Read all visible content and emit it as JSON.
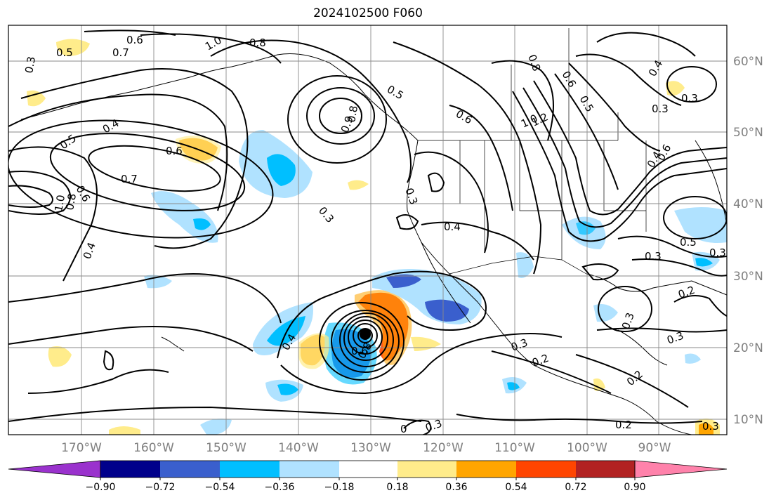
{
  "title": "2024102500 F060",
  "longitude_labels": [
    "170°W",
    "160°W",
    "150°W",
    "140°W",
    "130°W",
    "120°W",
    "110°W",
    "100°W",
    "90°W"
  ],
  "latitude_labels": [
    "60°N",
    "50°N",
    "40°N",
    "30°N",
    "20°N",
    "10°N"
  ],
  "colorbar": {
    "colors": [
      "#9a32cd",
      "#00008b",
      "#3a5fcd",
      "#00bfff",
      "#b0e2ff",
      "#ffffff",
      "#ffec8b",
      "#ffa500",
      "#ff4500",
      "#b22222",
      "#ff82ab"
    ],
    "tick_labels": [
      "−0.90",
      "−0.72",
      "−0.54",
      "−0.36",
      "−0.18",
      "0.18",
      "0.36",
      "0.54",
      "0.72",
      "0.90"
    ],
    "extend": "both"
  },
  "contour_labels": [
    "0.6",
    "0.7",
    "1.0",
    "0.8",
    "0.5",
    "0.4",
    "0.5",
    "0.6",
    "0.7",
    "1.0",
    "0.8",
    "0.6",
    "0.4",
    "0.3",
    "0.9",
    "0.8",
    "0.5",
    "0.6",
    "0.3",
    "0.4",
    "1.2",
    "1.0",
    "0.8",
    "0.6",
    "0.5",
    "0.3",
    "0.3",
    "0.4",
    "0.3",
    "0.5",
    "0.3",
    "0.2",
    "0.3",
    "0.4",
    "0.6",
    "0.8",
    "0.3",
    "0.2",
    "0.3",
    "0.2",
    "0.3",
    "0.2",
    "0",
    "0.3",
    "0.4",
    "0.6",
    "0.3"
  ]
}
